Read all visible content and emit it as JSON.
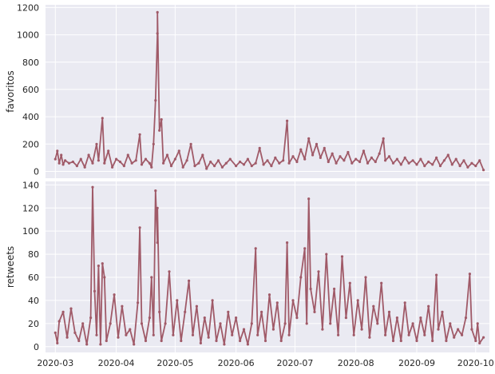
{
  "style": {
    "panel_bg": "#eaeaf2",
    "grid_color": "#ffffff",
    "series_color": "#a05a68"
  },
  "chart_data": [
    {
      "type": "line",
      "xlabel": "",
      "ylabel": "favoritos",
      "ylim": [
        -50,
        1220
      ],
      "yticks": [
        0,
        200,
        400,
        600,
        800,
        1000,
        1200
      ],
      "xticks": [
        "2020-03",
        "2020-04",
        "2020-05",
        "2020-06",
        "2020-07",
        "2020-08",
        "2020-09",
        "2020-10"
      ],
      "xrange": [
        "2020-02-25",
        "2020-10-08"
      ],
      "grid": true,
      "series": [
        {
          "points": [
            [
              "2020-03-01",
              90
            ],
            [
              "2020-03-02",
              150
            ],
            [
              "2020-03-03",
              60
            ],
            [
              "2020-03-04",
              120
            ],
            [
              "2020-03-05",
              50
            ],
            [
              "2020-03-06",
              80
            ],
            [
              "2020-03-08",
              60
            ],
            [
              "2020-03-10",
              70
            ],
            [
              "2020-03-12",
              40
            ],
            [
              "2020-03-14",
              90
            ],
            [
              "2020-03-16",
              30
            ],
            [
              "2020-03-18",
              120
            ],
            [
              "2020-03-20",
              60
            ],
            [
              "2020-03-22",
              200
            ],
            [
              "2020-03-23",
              80
            ],
            [
              "2020-03-25",
              390
            ],
            [
              "2020-03-26",
              60
            ],
            [
              "2020-03-28",
              150
            ],
            [
              "2020-03-30",
              30
            ],
            [
              "2020-04-01",
              90
            ],
            [
              "2020-04-03",
              70
            ],
            [
              "2020-04-05",
              40
            ],
            [
              "2020-04-07",
              120
            ],
            [
              "2020-04-09",
              60
            ],
            [
              "2020-04-11",
              80
            ],
            [
              "2020-04-13",
              270
            ],
            [
              "2020-04-14",
              50
            ],
            [
              "2020-04-16",
              90
            ],
            [
              "2020-04-18",
              60
            ],
            [
              "2020-04-19",
              30
            ],
            [
              "2020-04-20",
              200
            ],
            [
              "2020-04-21",
              520
            ],
            [
              "2020-04-22",
              1010
            ],
            [
              "2020-04-22",
              1165
            ],
            [
              "2020-04-23",
              300
            ],
            [
              "2020-04-24",
              380
            ],
            [
              "2020-04-25",
              60
            ],
            [
              "2020-04-27",
              120
            ],
            [
              "2020-04-29",
              40
            ],
            [
              "2020-05-01",
              90
            ],
            [
              "2020-05-03",
              150
            ],
            [
              "2020-05-05",
              30
            ],
            [
              "2020-05-07",
              80
            ],
            [
              "2020-05-09",
              200
            ],
            [
              "2020-05-11",
              40
            ],
            [
              "2020-05-13",
              60
            ],
            [
              "2020-05-15",
              120
            ],
            [
              "2020-05-17",
              20
            ],
            [
              "2020-05-19",
              70
            ],
            [
              "2020-05-21",
              40
            ],
            [
              "2020-05-23",
              80
            ],
            [
              "2020-05-25",
              30
            ],
            [
              "2020-05-27",
              60
            ],
            [
              "2020-05-29",
              90
            ],
            [
              "2020-06-01",
              40
            ],
            [
              "2020-06-03",
              70
            ],
            [
              "2020-06-05",
              50
            ],
            [
              "2020-06-07",
              90
            ],
            [
              "2020-06-09",
              40
            ],
            [
              "2020-06-11",
              60
            ],
            [
              "2020-06-13",
              170
            ],
            [
              "2020-06-15",
              50
            ],
            [
              "2020-06-17",
              80
            ],
            [
              "2020-06-19",
              40
            ],
            [
              "2020-06-21",
              100
            ],
            [
              "2020-06-23",
              60
            ],
            [
              "2020-06-25",
              80
            ],
            [
              "2020-06-27",
              370
            ],
            [
              "2020-06-28",
              60
            ],
            [
              "2020-06-30",
              110
            ],
            [
              "2020-07-02",
              70
            ],
            [
              "2020-07-04",
              160
            ],
            [
              "2020-07-06",
              90
            ],
            [
              "2020-07-08",
              240
            ],
            [
              "2020-07-10",
              120
            ],
            [
              "2020-07-12",
              200
            ],
            [
              "2020-07-14",
              100
            ],
            [
              "2020-07-16",
              170
            ],
            [
              "2020-07-18",
              70
            ],
            [
              "2020-07-20",
              130
            ],
            [
              "2020-07-22",
              60
            ],
            [
              "2020-07-24",
              110
            ],
            [
              "2020-07-26",
              80
            ],
            [
              "2020-07-28",
              140
            ],
            [
              "2020-07-30",
              60
            ],
            [
              "2020-08-01",
              90
            ],
            [
              "2020-08-03",
              70
            ],
            [
              "2020-08-05",
              150
            ],
            [
              "2020-08-07",
              60
            ],
            [
              "2020-08-09",
              100
            ],
            [
              "2020-08-11",
              70
            ],
            [
              "2020-08-13",
              130
            ],
            [
              "2020-08-15",
              240
            ],
            [
              "2020-08-16",
              80
            ],
            [
              "2020-08-18",
              110
            ],
            [
              "2020-08-20",
              60
            ],
            [
              "2020-08-22",
              90
            ],
            [
              "2020-08-24",
              50
            ],
            [
              "2020-08-26",
              100
            ],
            [
              "2020-08-28",
              60
            ],
            [
              "2020-08-30",
              80
            ],
            [
              "2020-09-01",
              50
            ],
            [
              "2020-09-03",
              90
            ],
            [
              "2020-09-05",
              40
            ],
            [
              "2020-09-07",
              70
            ],
            [
              "2020-09-09",
              50
            ],
            [
              "2020-09-11",
              100
            ],
            [
              "2020-09-13",
              40
            ],
            [
              "2020-09-15",
              80
            ],
            [
              "2020-09-17",
              120
            ],
            [
              "2020-09-19",
              50
            ],
            [
              "2020-09-21",
              90
            ],
            [
              "2020-09-23",
              40
            ],
            [
              "2020-09-25",
              80
            ],
            [
              "2020-09-27",
              30
            ],
            [
              "2020-09-29",
              60
            ],
            [
              "2020-10-01",
              40
            ],
            [
              "2020-10-03",
              80
            ],
            [
              "2020-10-05",
              10
            ]
          ]
        }
      ]
    },
    {
      "type": "line",
      "xlabel": "",
      "ylabel": "retweets",
      "ylim": [
        -5,
        143
      ],
      "yticks": [
        0,
        20,
        40,
        60,
        80,
        100,
        120,
        140
      ],
      "xticks": [
        "2020-03",
        "2020-04",
        "2020-05",
        "2020-06",
        "2020-07",
        "2020-08",
        "2020-09",
        "2020-10"
      ],
      "xrange": [
        "2020-02-25",
        "2020-10-08"
      ],
      "grid": true,
      "series": [
        {
          "points": [
            [
              "2020-03-01",
              12
            ],
            [
              "2020-03-02",
              3
            ],
            [
              "2020-03-03",
              22
            ],
            [
              "2020-03-05",
              30
            ],
            [
              "2020-03-07",
              8
            ],
            [
              "2020-03-09",
              33
            ],
            [
              "2020-03-11",
              12
            ],
            [
              "2020-03-13",
              5
            ],
            [
              "2020-03-15",
              20
            ],
            [
              "2020-03-17",
              2
            ],
            [
              "2020-03-19",
              25
            ],
            [
              "2020-03-20",
              138
            ],
            [
              "2020-03-21",
              48
            ],
            [
              "2020-03-22",
              10
            ],
            [
              "2020-03-23",
              70
            ],
            [
              "2020-03-24",
              2
            ],
            [
              "2020-03-25",
              72
            ],
            [
              "2020-03-26",
              60
            ],
            [
              "2020-03-27",
              5
            ],
            [
              "2020-03-29",
              20
            ],
            [
              "2020-03-31",
              45
            ],
            [
              "2020-04-02",
              8
            ],
            [
              "2020-04-04",
              35
            ],
            [
              "2020-04-06",
              10
            ],
            [
              "2020-04-08",
              15
            ],
            [
              "2020-04-10",
              2
            ],
            [
              "2020-04-12",
              38
            ],
            [
              "2020-04-13",
              103
            ],
            [
              "2020-04-14",
              20
            ],
            [
              "2020-04-16",
              5
            ],
            [
              "2020-04-18",
              25
            ],
            [
              "2020-04-19",
              60
            ],
            [
              "2020-04-20",
              10
            ],
            [
              "2020-04-21",
              135
            ],
            [
              "2020-04-22",
              90
            ],
            [
              "2020-04-22",
              120
            ],
            [
              "2020-04-23",
              30
            ],
            [
              "2020-04-24",
              5
            ],
            [
              "2020-04-26",
              20
            ],
            [
              "2020-04-28",
              65
            ],
            [
              "2020-04-30",
              10
            ],
            [
              "2020-05-02",
              40
            ],
            [
              "2020-05-04",
              5
            ],
            [
              "2020-05-06",
              30
            ],
            [
              "2020-05-08",
              57
            ],
            [
              "2020-05-10",
              10
            ],
            [
              "2020-05-12",
              35
            ],
            [
              "2020-05-14",
              3
            ],
            [
              "2020-05-16",
              25
            ],
            [
              "2020-05-18",
              8
            ],
            [
              "2020-05-20",
              40
            ],
            [
              "2020-05-22",
              5
            ],
            [
              "2020-05-24",
              20
            ],
            [
              "2020-05-26",
              2
            ],
            [
              "2020-05-28",
              30
            ],
            [
              "2020-05-30",
              10
            ],
            [
              "2020-06-01",
              25
            ],
            [
              "2020-06-03",
              5
            ],
            [
              "2020-06-05",
              15
            ],
            [
              "2020-06-07",
              2
            ],
            [
              "2020-06-09",
              20
            ],
            [
              "2020-06-11",
              85
            ],
            [
              "2020-06-12",
              10
            ],
            [
              "2020-06-14",
              30
            ],
            [
              "2020-06-16",
              5
            ],
            [
              "2020-06-18",
              45
            ],
            [
              "2020-06-20",
              15
            ],
            [
              "2020-06-22",
              38
            ],
            [
              "2020-06-24",
              5
            ],
            [
              "2020-06-26",
              20
            ],
            [
              "2020-06-27",
              90
            ],
            [
              "2020-06-28",
              10
            ],
            [
              "2020-06-30",
              40
            ],
            [
              "2020-07-02",
              25
            ],
            [
              "2020-07-04",
              60
            ],
            [
              "2020-07-06",
              85
            ],
            [
              "2020-07-07",
              20
            ],
            [
              "2020-07-08",
              128
            ],
            [
              "2020-07-09",
              50
            ],
            [
              "2020-07-11",
              30
            ],
            [
              "2020-07-13",
              65
            ],
            [
              "2020-07-15",
              15
            ],
            [
              "2020-07-17",
              80
            ],
            [
              "2020-07-19",
              20
            ],
            [
              "2020-07-21",
              50
            ],
            [
              "2020-07-23",
              10
            ],
            [
              "2020-07-25",
              78
            ],
            [
              "2020-07-27",
              25
            ],
            [
              "2020-07-29",
              55
            ],
            [
              "2020-07-31",
              10
            ],
            [
              "2020-08-02",
              40
            ],
            [
              "2020-08-04",
              15
            ],
            [
              "2020-08-06",
              60
            ],
            [
              "2020-08-08",
              8
            ],
            [
              "2020-08-10",
              35
            ],
            [
              "2020-08-12",
              20
            ],
            [
              "2020-08-14",
              55
            ],
            [
              "2020-08-16",
              10
            ],
            [
              "2020-08-18",
              30
            ],
            [
              "2020-08-20",
              5
            ],
            [
              "2020-08-22",
              25
            ],
            [
              "2020-08-24",
              5
            ],
            [
              "2020-08-26",
              38
            ],
            [
              "2020-08-28",
              10
            ],
            [
              "2020-08-30",
              20
            ],
            [
              "2020-09-01",
              5
            ],
            [
              "2020-09-03",
              25
            ],
            [
              "2020-09-05",
              10
            ],
            [
              "2020-09-07",
              35
            ],
            [
              "2020-09-09",
              5
            ],
            [
              "2020-09-11",
              62
            ],
            [
              "2020-09-12",
              15
            ],
            [
              "2020-09-14",
              30
            ],
            [
              "2020-09-16",
              5
            ],
            [
              "2020-09-18",
              20
            ],
            [
              "2020-09-20",
              8
            ],
            [
              "2020-09-22",
              15
            ],
            [
              "2020-09-24",
              10
            ],
            [
              "2020-09-26",
              25
            ],
            [
              "2020-09-28",
              63
            ],
            [
              "2020-09-29",
              15
            ],
            [
              "2020-10-01",
              5
            ],
            [
              "2020-10-02",
              20
            ],
            [
              "2020-10-03",
              3
            ],
            [
              "2020-10-05",
              8
            ]
          ]
        }
      ]
    }
  ]
}
